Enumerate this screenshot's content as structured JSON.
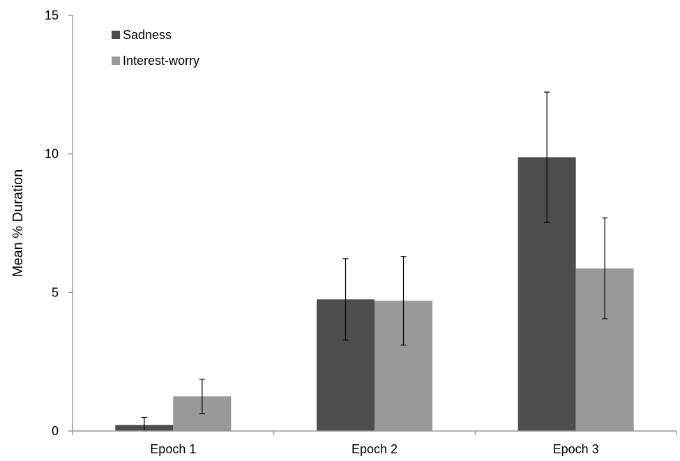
{
  "chart_data": {
    "type": "bar",
    "title": "",
    "xlabel": "",
    "ylabel": "Mean % Duration",
    "categories": [
      "Epoch 1",
      "Epoch 2",
      "Epoch 3"
    ],
    "ylim": [
      0,
      15
    ],
    "yticks": [
      0,
      5,
      10,
      15
    ],
    "grid": false,
    "legend_position": "top-left",
    "series": [
      {
        "name": "Sadness",
        "color": "#4d4d4d",
        "values": [
          0.22,
          4.75,
          9.88
        ],
        "error": [
          0.27,
          1.47,
          2.35
        ]
      },
      {
        "name": "Interest-worry",
        "color": "#999999",
        "values": [
          1.25,
          4.7,
          5.87
        ],
        "error": [
          0.62,
          1.6,
          1.82
        ]
      }
    ],
    "colors": {
      "axis": "#999999",
      "error_bar": "#000000"
    }
  }
}
